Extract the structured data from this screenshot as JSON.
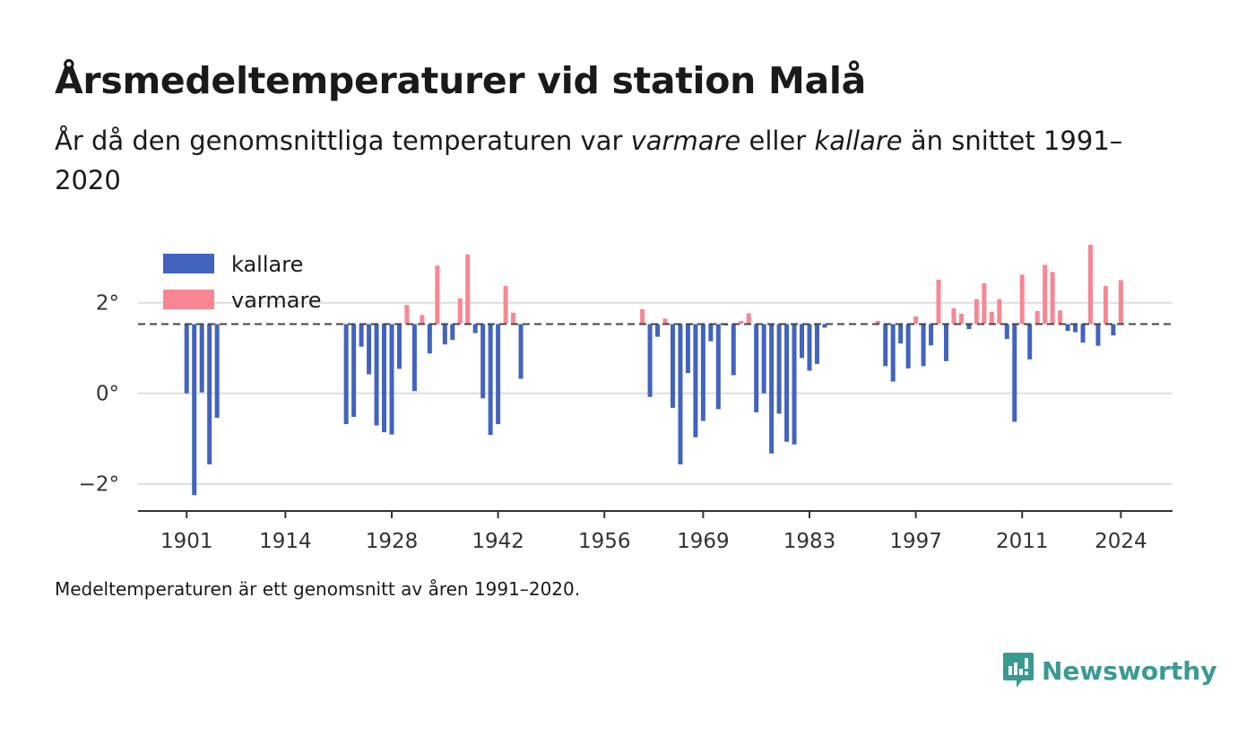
{
  "title": "Årsmedeltemperaturer vid station Malå",
  "subtitle": {
    "part1": "År då den genomsnittliga temperaturen var ",
    "em1": "varmare",
    "part2": " eller ",
    "em2": "kallare",
    "part3": " än snittet 1991–2020"
  },
  "note": "Medeltemperaturen är ett genomsnitt av åren 1991–2020.",
  "brand": {
    "name": "Newsworthy",
    "icon": "newsworthy-logo-icon",
    "color": "#3a9a92"
  },
  "chart_data": {
    "type": "bar",
    "baseline": 1.53,
    "baseline_style": "dashed",
    "ylim": [
      -2.6,
      3.5
    ],
    "y_ticks": [
      2,
      0,
      -2
    ],
    "y_tick_labels": [
      "2°",
      "0°",
      "−2°"
    ],
    "x_ticks": [
      1901,
      1914,
      1928,
      1942,
      1956,
      1969,
      1983,
      1997,
      2011,
      2024
    ],
    "x_tick_labels": [
      "1901",
      "1914",
      "1928",
      "1942",
      "1956",
      "1969",
      "1983",
      "1997",
      "2011",
      "2024"
    ],
    "xlim": [
      1894.6,
      2030.8
    ],
    "grid": true,
    "legend": {
      "placement": "top-left",
      "entries": [
        {
          "label": "kallare",
          "color": "#4263be"
        },
        {
          "label": "varmare",
          "color": "#f98693"
        }
      ]
    },
    "colors": {
      "kallare": "#4263be",
      "varmare": "#f98693",
      "baseline": "#444444",
      "grid": "#dddddd",
      "axis": "#333333"
    },
    "years": [
      1901,
      1902,
      1903,
      1904,
      1905,
      1922,
      1923,
      1924,
      1925,
      1926,
      1927,
      1928,
      1929,
      1930,
      1931,
      1932,
      1933,
      1934,
      1935,
      1936,
      1937,
      1938,
      1939,
      1940,
      1941,
      1942,
      1943,
      1944,
      1945,
      1961,
      1962,
      1963,
      1964,
      1965,
      1966,
      1967,
      1968,
      1969,
      1970,
      1971,
      1972,
      1973,
      1974,
      1975,
      1976,
      1977,
      1978,
      1979,
      1980,
      1981,
      1982,
      1983,
      1984,
      1985,
      1992,
      1993,
      1994,
      1995,
      1996,
      1997,
      1998,
      1999,
      2000,
      2001,
      2002,
      2003,
      2004,
      2005,
      2006,
      2007,
      2008,
      2009,
      2010,
      2011,
      2012,
      2013,
      2014,
      2015,
      2016,
      2017,
      2018,
      2019,
      2020,
      2021,
      2022,
      2023,
      2024
    ],
    "values": [
      0.0,
      -2.25,
      0.02,
      -1.57,
      -0.54,
      -0.68,
      -0.52,
      1.03,
      0.42,
      -0.71,
      -0.86,
      -0.91,
      0.54,
      1.95,
      0.05,
      1.73,
      0.88,
      2.82,
      1.08,
      1.18,
      2.1,
      3.07,
      1.33,
      -0.11,
      -0.92,
      -0.68,
      2.37,
      1.78,
      0.32,
      1.86,
      -0.08,
      1.25,
      1.65,
      -0.32,
      -1.57,
      0.45,
      -0.97,
      -0.61,
      1.15,
      -0.35,
      1.5,
      0.4,
      1.6,
      1.77,
      -0.42,
      0.0,
      -1.33,
      -0.45,
      -1.07,
      -1.13,
      0.78,
      0.5,
      0.65,
      1.45,
      1.6,
      0.6,
      0.26,
      1.1,
      0.55,
      1.7,
      0.6,
      1.06,
      2.51,
      0.71,
      1.88,
      1.76,
      1.42,
      2.08,
      2.43,
      1.8,
      2.08,
      1.2,
      -0.63,
      2.62,
      0.75,
      1.82,
      2.84,
      2.68,
      1.83,
      1.38,
      1.35,
      1.12,
      3.28,
      1.05,
      2.37,
      1.28,
      2.5
    ]
  }
}
